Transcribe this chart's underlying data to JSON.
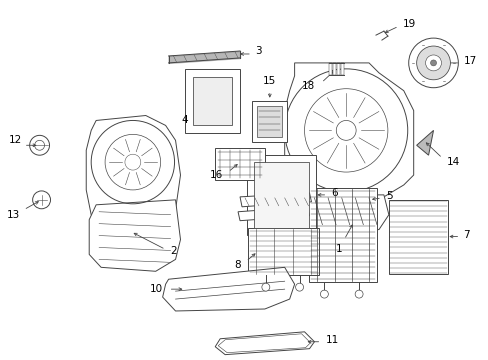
{
  "background_color": "#ffffff",
  "line_color": "#444444",
  "text_color": "#000000",
  "fig_width": 4.89,
  "fig_height": 3.6,
  "dpi": 100,
  "font_size": 7.5
}
